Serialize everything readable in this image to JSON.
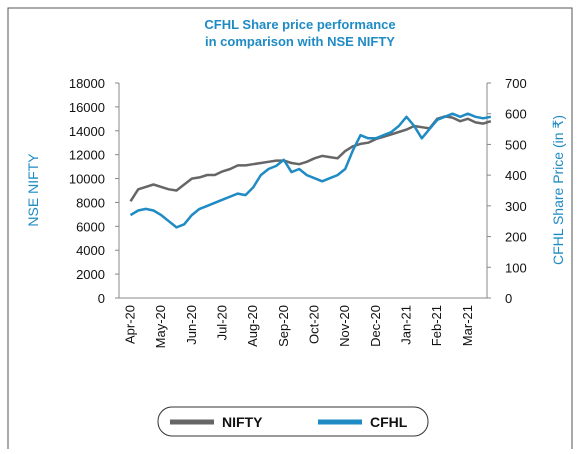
{
  "chart_data": {
    "type": "line",
    "title": [
      "CFHL Share price performance",
      "in comparison with NSE NIFTY"
    ],
    "y_label": "NSE NIFTY",
    "y2_label": "CFHL Share Price (in ₹)",
    "categories": [
      "Apr-20",
      null,
      null,
      null,
      "May-20",
      null,
      null,
      null,
      "Jun-20",
      null,
      null,
      null,
      "Jul-20",
      null,
      null,
      null,
      "Aug-20",
      null,
      null,
      null,
      "Sep-20",
      null,
      null,
      null,
      "Oct-20",
      null,
      null,
      null,
      "Nov-20",
      null,
      null,
      null,
      "Dec-20",
      null,
      null,
      null,
      "Jan-21",
      null,
      null,
      null,
      "Feb-21",
      null,
      null,
      null,
      "Mar-21",
      null,
      null,
      null
    ],
    "series": [
      {
        "name": "NIFTY",
        "color": "#666666",
        "axis": "y",
        "values": [
          8100,
          9100,
          9300,
          9500,
          9300,
          9100,
          9000,
          9500,
          10000,
          10100,
          10300,
          10300,
          10600,
          10800,
          11100,
          11100,
          11200,
          11300,
          11400,
          11500,
          11500,
          11300,
          11200,
          11400,
          11700,
          11900,
          11800,
          11700,
          12300,
          12700,
          12900,
          13000,
          13300,
          13500,
          13700,
          13900,
          14100,
          14400,
          14300,
          14200,
          15000,
          15200,
          15100,
          14800,
          15000,
          14700,
          14600,
          14800
        ]
      },
      {
        "name": "CFHL",
        "color": "#1f8bc4",
        "axis": "y2",
        "values": [
          270,
          285,
          290,
          285,
          270,
          250,
          230,
          240,
          270,
          290,
          300,
          310,
          320,
          330,
          340,
          335,
          360,
          400,
          420,
          430,
          450,
          410,
          420,
          400,
          390,
          380,
          390,
          400,
          420,
          480,
          530,
          520,
          520,
          530,
          540,
          560,
          590,
          560,
          520,
          550,
          580,
          590,
          600,
          590,
          600,
          590,
          585,
          590
        ]
      }
    ],
    "ylim": [
      0,
      18000
    ],
    "yticks": [
      0,
      2000,
      4000,
      6000,
      8000,
      10000,
      12000,
      14000,
      16000,
      18000
    ],
    "y2lim": [
      0,
      700
    ],
    "y2ticks": [
      0,
      100,
      200,
      300,
      400,
      500,
      600,
      700
    ],
    "grid": false,
    "legend": "bottom"
  }
}
